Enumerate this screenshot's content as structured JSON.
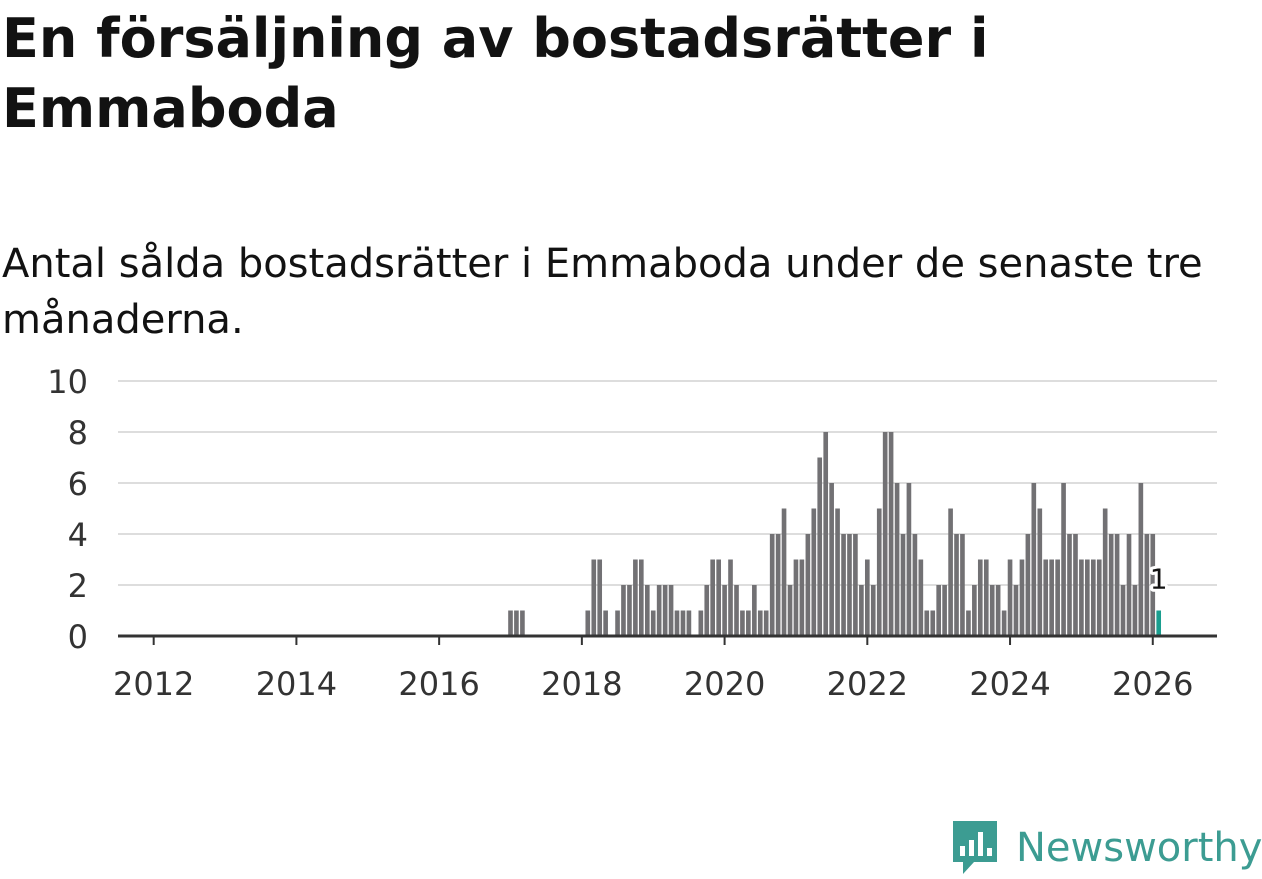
{
  "title": "En försäljning av bostadsrätter i Emmaboda",
  "subtitle": "Antal sålda bostadsrätter i Emmaboda under de senaste tre månaderna.",
  "brand": {
    "name": "Newsworthy",
    "color": "#3c9c92",
    "icon": "newsworthy-logo-icon"
  },
  "colors": {
    "bar": "#727174",
    "highlight": "#1a9e8f",
    "grid": "#dddddd",
    "axis": "#333333"
  },
  "chart_data": {
    "type": "bar",
    "title": "En försäljning av bostadsrätter i Emmaboda",
    "xlabel": "",
    "ylabel": "",
    "ylim": [
      0,
      10
    ],
    "yticks": [
      "0",
      "2",
      "4",
      "6",
      "8",
      "10"
    ],
    "xlim": [
      2011.5,
      2026.9
    ],
    "xticks": [
      "2012",
      "2014",
      "2016",
      "2018",
      "2020",
      "2022",
      "2024",
      "2026"
    ],
    "grid": true,
    "legend": "none",
    "series": [
      {
        "name": "Antal sålda bostadsrätter",
        "x": [
          2017.0,
          2017.083,
          2017.167,
          2018.083,
          2018.167,
          2018.25,
          2018.333,
          2018.5,
          2018.583,
          2018.667,
          2018.75,
          2018.833,
          2018.917,
          2019.0,
          2019.083,
          2019.167,
          2019.25,
          2019.333,
          2019.417,
          2019.5,
          2019.667,
          2019.75,
          2019.833,
          2019.917,
          2020.0,
          2020.083,
          2020.167,
          2020.25,
          2020.333,
          2020.417,
          2020.5,
          2020.583,
          2020.667,
          2020.75,
          2020.833,
          2020.917,
          2021.0,
          2021.083,
          2021.167,
          2021.25,
          2021.333,
          2021.417,
          2021.5,
          2021.583,
          2021.667,
          2021.75,
          2021.833,
          2021.917,
          2022.0,
          2022.083,
          2022.167,
          2022.25,
          2022.333,
          2022.417,
          2022.5,
          2022.583,
          2022.667,
          2022.75,
          2022.833,
          2022.917,
          2023.0,
          2023.083,
          2023.167,
          2023.25,
          2023.333,
          2023.417,
          2023.5,
          2023.583,
          2023.667,
          2023.75,
          2023.833,
          2023.917,
          2024.0,
          2024.083,
          2024.167,
          2024.25,
          2024.333,
          2024.417,
          2024.5,
          2024.583,
          2024.667,
          2024.75,
          2024.833,
          2024.917,
          2025.0,
          2025.083,
          2025.167,
          2025.25,
          2025.333,
          2025.417,
          2025.5,
          2025.583,
          2025.667,
          2025.75,
          2025.833,
          2025.917,
          2026.0,
          2026.083
        ],
        "values": [
          1,
          1,
          1,
          1,
          3,
          3,
          1,
          1,
          2,
          2,
          3,
          3,
          2,
          1,
          2,
          2,
          2,
          1,
          1,
          1,
          1,
          2,
          3,
          3,
          2,
          3,
          2,
          1,
          1,
          2,
          1,
          1,
          4,
          4,
          5,
          2,
          3,
          3,
          4,
          5,
          7,
          8,
          6,
          5,
          4,
          4,
          4,
          2,
          3,
          2,
          5,
          8,
          8,
          6,
          4,
          6,
          4,
          3,
          1,
          1,
          2,
          2,
          5,
          4,
          4,
          1,
          2,
          3,
          3,
          2,
          2,
          1,
          3,
          2,
          3,
          4,
          6,
          5,
          3,
          3,
          3,
          6,
          4,
          4,
          3,
          3,
          3,
          3,
          5,
          4,
          4,
          2,
          4,
          2,
          6,
          4,
          4,
          1
        ]
      }
    ],
    "highlight": {
      "x": 2026.083,
      "value": 1,
      "label": "1"
    }
  }
}
